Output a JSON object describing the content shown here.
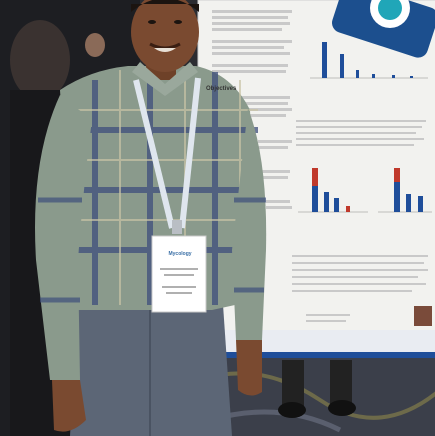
{
  "scene": {
    "poster": {
      "heading": "Objectives",
      "accent_color": "#1f4e9a",
      "bar_colors": [
        "#1f4e9a",
        "#c0392b"
      ]
    },
    "badge": {
      "logo_text": "Mycology"
    },
    "logo_icon": "camera-lens-icon"
  }
}
